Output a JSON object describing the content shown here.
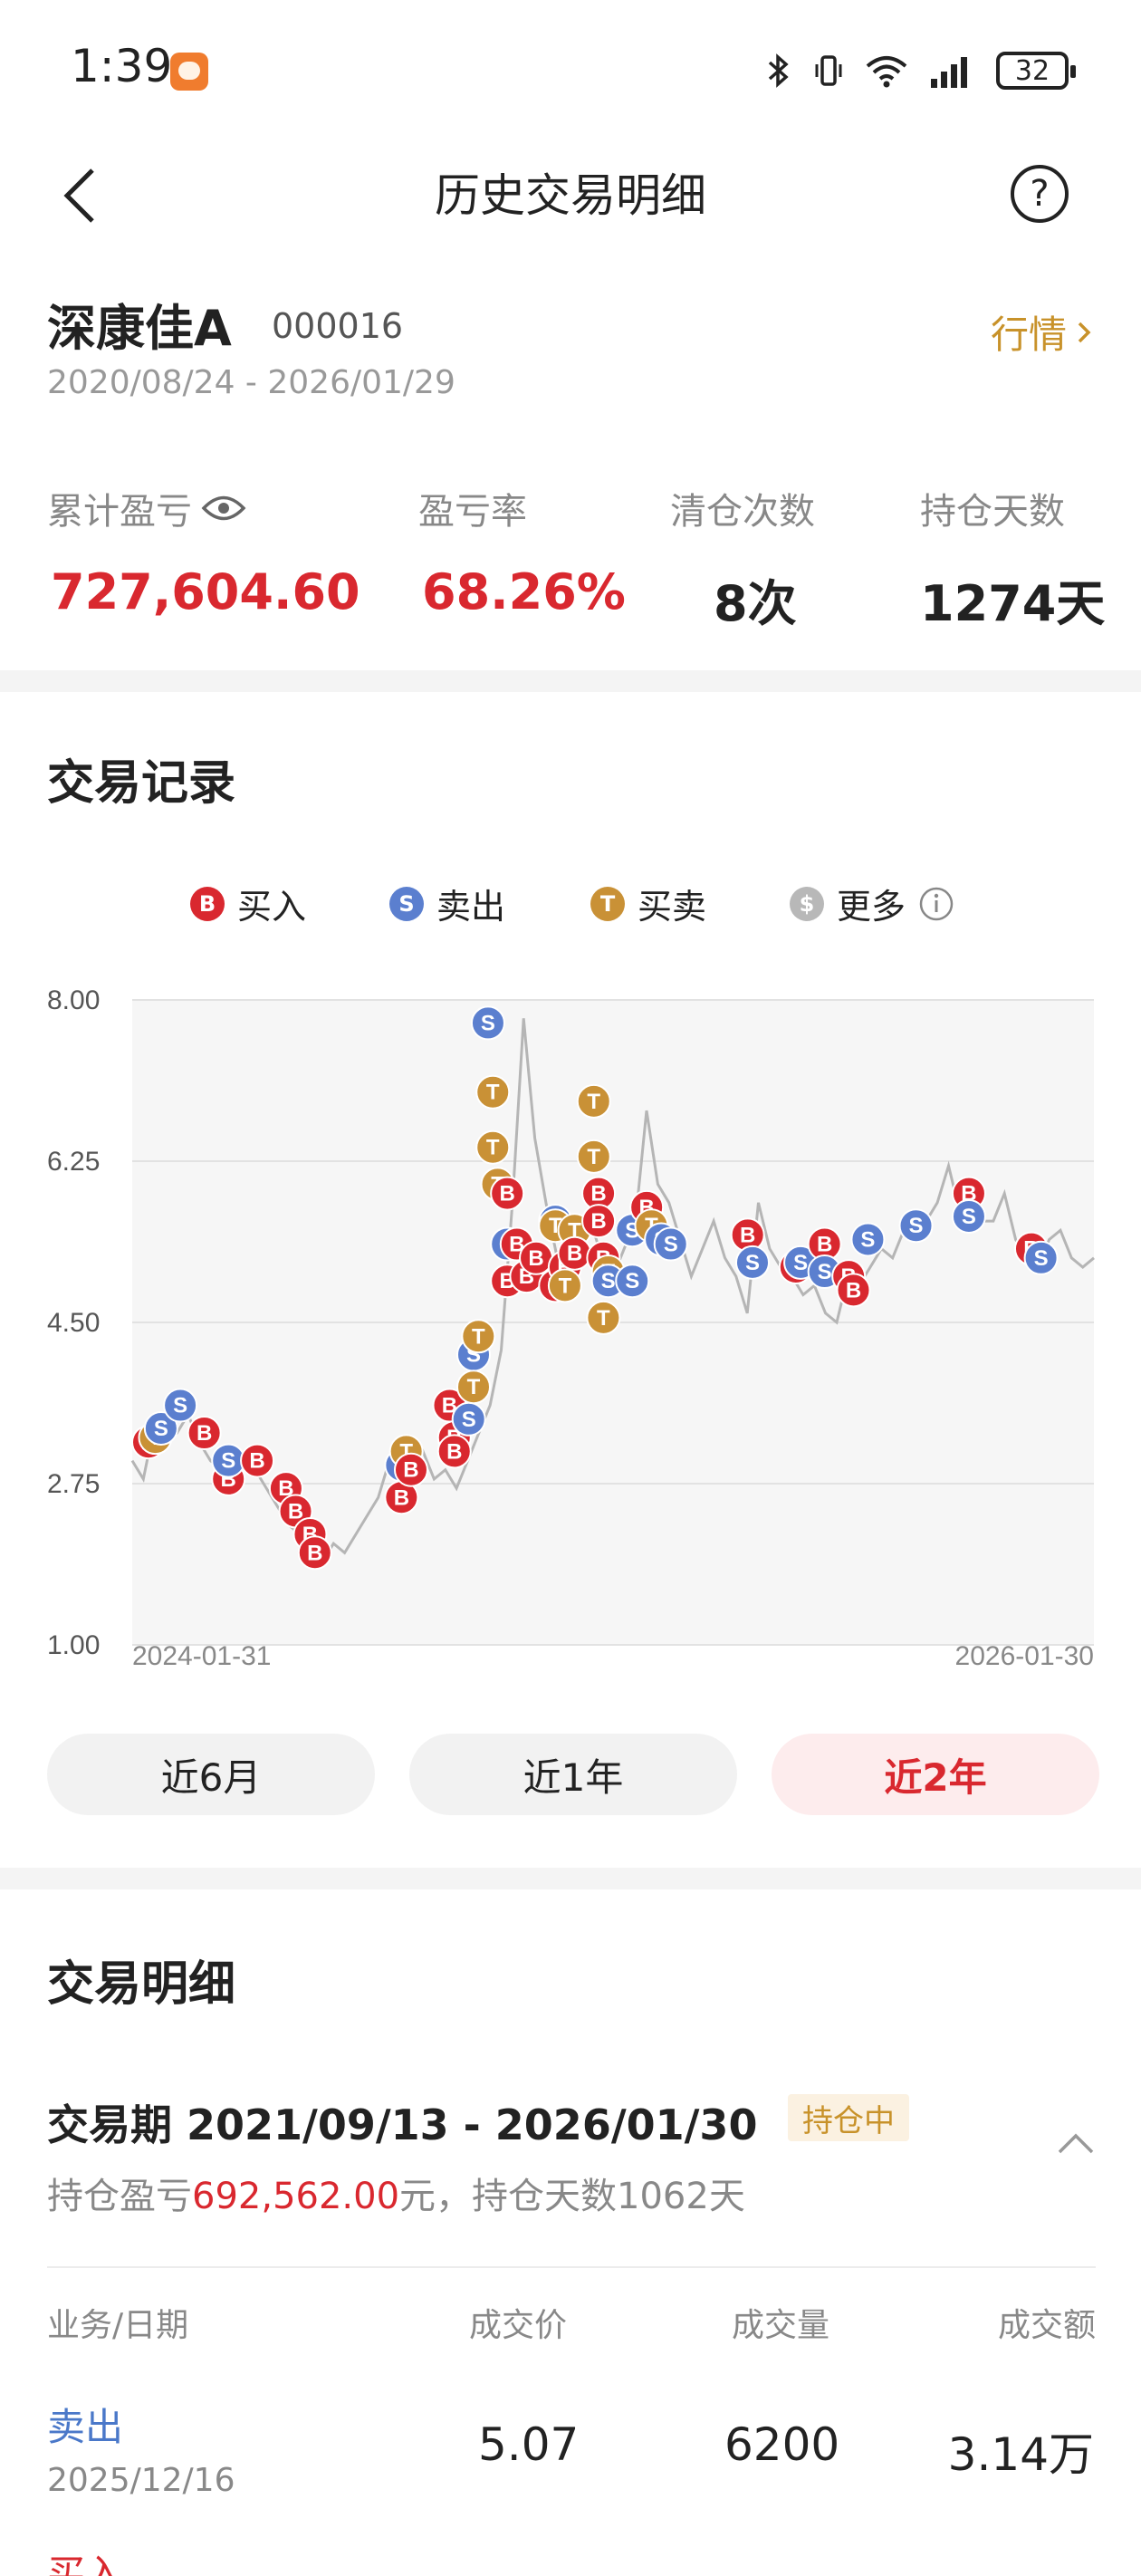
{
  "status_bar": {
    "time": "1:39",
    "battery": "32"
  },
  "nav": {
    "title": "历史交易明细",
    "help_label": "?"
  },
  "stock": {
    "name": "深康佳A",
    "code": "000016",
    "market_label": "行情",
    "date_range": "2020/08/24 - 2026/01/29"
  },
  "stats": [
    {
      "label": "累计盈亏",
      "value": "727,604.60",
      "color": "#d9282f"
    },
    {
      "label": "盈亏率",
      "value": "68.26%",
      "color": "#d9282f"
    },
    {
      "label": "清仓次数",
      "value": "8次",
      "color": "#222222"
    },
    {
      "label": "持仓天数",
      "value": "1274天",
      "color": "#222222"
    }
  ],
  "records_section": {
    "title": "交易记录"
  },
  "legend": [
    {
      "letter": "B",
      "label": "买入",
      "color": "#d9282f"
    },
    {
      "letter": "S",
      "label": "卖出",
      "color": "#5b7fcf"
    },
    {
      "letter": "T",
      "label": "买卖",
      "color": "#c99136"
    },
    {
      "letter": "$",
      "label": "更多",
      "color": "#b8b8b8"
    }
  ],
  "chart_data": {
    "type": "line",
    "ylim": [
      1.0,
      8.0
    ],
    "y_ticks": [
      "8.00",
      "6.25",
      "4.50",
      "2.75",
      "1.00"
    ],
    "x_labels": [
      "2024-01-31",
      "2026-01-30"
    ],
    "price_series": [
      3.0,
      2.8,
      3.4,
      3.2,
      3.3,
      3.5,
      3.2,
      3.0,
      2.9,
      2.8,
      3.0,
      2.9,
      2.7,
      2.5,
      2.3,
      2.2,
      2.0,
      1.9,
      2.1,
      2.0,
      2.2,
      2.4,
      2.6,
      3.0,
      2.7,
      2.9,
      3.1,
      2.8,
      2.9,
      2.7,
      3.0,
      3.3,
      3.6,
      4.2,
      5.8,
      7.8,
      6.5,
      5.8,
      5.2,
      5.0,
      5.4,
      5.6,
      5.2,
      5.0,
      5.3,
      5.6,
      6.8,
      6.0,
      5.8,
      5.4,
      5.0,
      5.3,
      5.6,
      5.2,
      5.0,
      4.6,
      5.8,
      5.3,
      5.1,
      5.0,
      4.8,
      4.9,
      4.6,
      4.5,
      5.0,
      4.9,
      5.1,
      5.3,
      5.2,
      5.5,
      5.4,
      5.6,
      5.8,
      6.2,
      5.7,
      5.5,
      5.6,
      5.6,
      5.9,
      5.4,
      5.2,
      5.1,
      5.4,
      5.5,
      5.2,
      5.1,
      5.2
    ],
    "markers": [
      {
        "t": "B",
        "x": 0.003,
        "y": 3.2
      },
      {
        "t": "T",
        "x": 0.024,
        "y": 3.25
      },
      {
        "t": "S",
        "x": 0.03,
        "y": 3.35
      },
      {
        "t": "S",
        "x": 0.05,
        "y": 3.6
      },
      {
        "t": "B",
        "x": 0.075,
        "y": 3.3
      },
      {
        "t": "B",
        "x": 0.1,
        "y": 2.8
      },
      {
        "t": "S",
        "x": 0.1,
        "y": 3.0
      },
      {
        "t": "B",
        "x": 0.13,
        "y": 3.0
      },
      {
        "t": "B",
        "x": 0.16,
        "y": 2.7
      },
      {
        "t": "B",
        "x": 0.17,
        "y": 2.45
      },
      {
        "t": "B",
        "x": 0.185,
        "y": 2.2
      },
      {
        "t": "B",
        "x": 0.19,
        "y": 2.0
      },
      {
        "t": "S",
        "x": 0.28,
        "y": 2.95
      },
      {
        "t": "T",
        "x": 0.285,
        "y": 3.1
      },
      {
        "t": "B",
        "x": 0.28,
        "y": 2.6
      },
      {
        "t": "B",
        "x": 0.29,
        "y": 2.9
      },
      {
        "t": "B",
        "x": 0.33,
        "y": 3.6
      },
      {
        "t": "B",
        "x": 0.335,
        "y": 3.25
      },
      {
        "t": "B",
        "x": 0.335,
        "y": 3.1
      },
      {
        "t": "S",
        "x": 0.35,
        "y": 3.45
      },
      {
        "t": "S",
        "x": 0.355,
        "y": 4.15
      },
      {
        "t": "T",
        "x": 0.355,
        "y": 3.8
      },
      {
        "t": "T",
        "x": 0.36,
        "y": 4.35
      },
      {
        "t": "S",
        "x": 0.37,
        "y": 7.75
      },
      {
        "t": "T",
        "x": 0.375,
        "y": 7.0
      },
      {
        "t": "T",
        "x": 0.375,
        "y": 6.4
      },
      {
        "t": "T",
        "x": 0.38,
        "y": 6.0
      },
      {
        "t": "B",
        "x": 0.39,
        "y": 5.9
      },
      {
        "t": "S",
        "x": 0.39,
        "y": 5.35
      },
      {
        "t": "B",
        "x": 0.4,
        "y": 5.35
      },
      {
        "t": "B",
        "x": 0.39,
        "y": 4.95
      },
      {
        "t": "B",
        "x": 0.41,
        "y": 5.0
      },
      {
        "t": "B",
        "x": 0.42,
        "y": 5.2
      },
      {
        "t": "B",
        "x": 0.44,
        "y": 4.9
      },
      {
        "t": "S",
        "x": 0.44,
        "y": 5.6
      },
      {
        "t": "T",
        "x": 0.44,
        "y": 5.55
      },
      {
        "t": "B",
        "x": 0.45,
        "y": 5.1
      },
      {
        "t": "T",
        "x": 0.45,
        "y": 4.9
      },
      {
        "t": "T",
        "x": 0.46,
        "y": 5.5
      },
      {
        "t": "B",
        "x": 0.46,
        "y": 5.25
      },
      {
        "t": "T",
        "x": 0.48,
        "y": 6.9
      },
      {
        "t": "T",
        "x": 0.48,
        "y": 6.3
      },
      {
        "t": "B",
        "x": 0.485,
        "y": 5.9
      },
      {
        "t": "B",
        "x": 0.485,
        "y": 5.6
      },
      {
        "t": "B",
        "x": 0.49,
        "y": 5.2
      },
      {
        "t": "T",
        "x": 0.495,
        "y": 5.05
      },
      {
        "t": "S",
        "x": 0.495,
        "y": 4.95
      },
      {
        "t": "T",
        "x": 0.49,
        "y": 4.55
      },
      {
        "t": "S",
        "x": 0.52,
        "y": 4.95
      },
      {
        "t": "S",
        "x": 0.52,
        "y": 5.5
      },
      {
        "t": "B",
        "x": 0.535,
        "y": 5.75
      },
      {
        "t": "T",
        "x": 0.54,
        "y": 5.55
      },
      {
        "t": "S",
        "x": 0.55,
        "y": 5.4
      },
      {
        "t": "S",
        "x": 0.56,
        "y": 5.35
      },
      {
        "t": "B",
        "x": 0.64,
        "y": 5.45
      },
      {
        "t": "S",
        "x": 0.645,
        "y": 5.15
      },
      {
        "t": "B",
        "x": 0.69,
        "y": 5.1
      },
      {
        "t": "S",
        "x": 0.695,
        "y": 5.15
      },
      {
        "t": "B",
        "x": 0.72,
        "y": 5.35
      },
      {
        "t": "S",
        "x": 0.72,
        "y": 5.05
      },
      {
        "t": "B",
        "x": 0.745,
        "y": 5.0
      },
      {
        "t": "B",
        "x": 0.75,
        "y": 4.85
      },
      {
        "t": "S",
        "x": 0.765,
        "y": 5.4
      },
      {
        "t": "S",
        "x": 0.815,
        "y": 5.55
      },
      {
        "t": "B",
        "x": 0.87,
        "y": 5.9
      },
      {
        "t": "S",
        "x": 0.87,
        "y": 5.65
      },
      {
        "t": "B",
        "x": 0.935,
        "y": 5.3
      },
      {
        "t": "S",
        "x": 0.945,
        "y": 5.2
      }
    ]
  },
  "range_buttons": [
    {
      "label": "近6月",
      "active": false
    },
    {
      "label": "近1年",
      "active": false
    },
    {
      "label": "近2年",
      "active": true
    }
  ],
  "detail_section": {
    "title": "交易明细",
    "period_label": "交易期 2021/09/13 - 2026/01/30",
    "holding_tag": "持仓中",
    "sub_prefix": "持仓盈亏",
    "sub_pnl": "692,562.00",
    "sub_suffix": "元，持仓天数1062天"
  },
  "table": {
    "headers": [
      "业务/日期",
      "成交价",
      "成交量",
      "成交额"
    ],
    "rows": [
      {
        "type": "卖出",
        "date": "2025/12/16",
        "price": "5.07",
        "volume": "6200",
        "amount": "3.14万",
        "type_color": "#4a78c9"
      },
      {
        "type": "买入",
        "date": "",
        "price": "",
        "volume": "",
        "amount": "",
        "type_color": "#d9282f"
      }
    ]
  }
}
